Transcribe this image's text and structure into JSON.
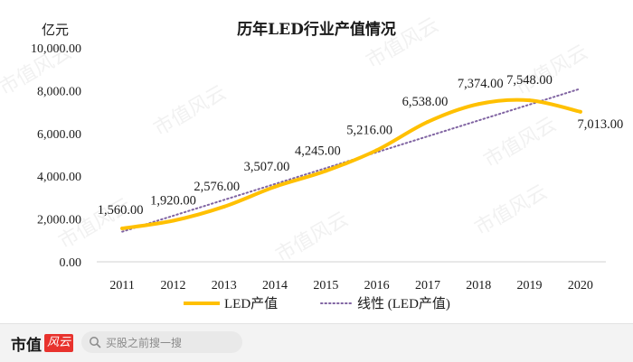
{
  "chart_data": {
    "type": "line",
    "title": "历年LED行业产值情况",
    "ylabel": "亿元",
    "xlabel": "",
    "categories": [
      "2011",
      "2012",
      "2013",
      "2014",
      "2015",
      "2016",
      "2017",
      "2018",
      "2019",
      "2020"
    ],
    "series": [
      {
        "name": "LED产值",
        "values": [
          1560,
          1920,
          2576,
          3507,
          4245,
          5216,
          6538,
          7374,
          7548,
          7013
        ],
        "color": "#ffc000"
      }
    ],
    "trendline": {
      "name": "线性 (LED产值)",
      "of_series": "LED产值",
      "color": "#8064a2",
      "style": "dotted"
    },
    "data_labels": [
      "1,560.00",
      "1,920.00",
      "2,576.00",
      "3,507.00",
      "4,245.00",
      "5,216.00",
      "6,538.00",
      "7,374.00",
      "7,548.00",
      "7,013.00"
    ],
    "yticks": [
      0,
      2000,
      4000,
      6000,
      8000,
      10000
    ],
    "ytick_labels": [
      "0.00",
      "2,000.00",
      "4,000.00",
      "6,000.00",
      "8,000.00",
      "10,000.00"
    ],
    "ylim": [
      0,
      10000
    ],
    "grid": false,
    "legend_position": "bottom"
  },
  "watermark": {
    "text": "市值风云"
  },
  "footer": {
    "brand": "市值",
    "brand_badge": "风云",
    "search_placeholder": "买股之前搜一搜",
    "search_icon": "search-icon"
  }
}
